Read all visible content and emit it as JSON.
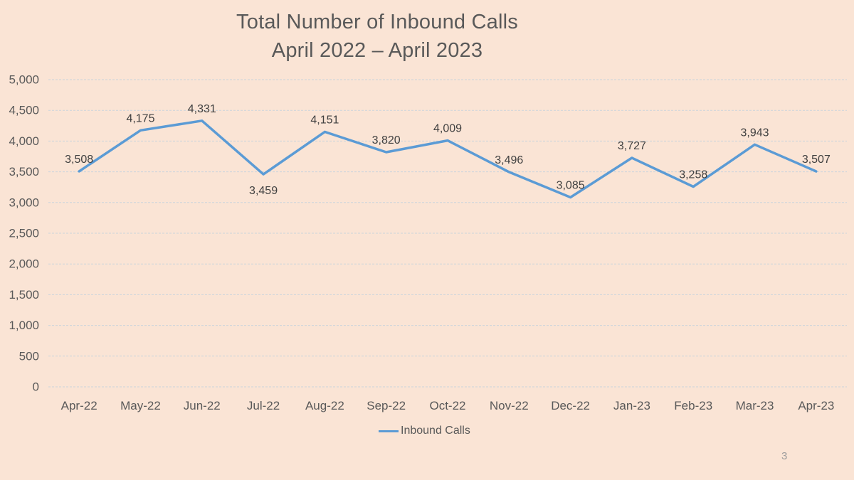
{
  "page": {
    "background_color": "#FAE4D5",
    "slide_number": "3"
  },
  "title": {
    "line1": "Total Number of Inbound Calls",
    "line2": "April 2022 – April 2023",
    "color": "#595959"
  },
  "legend": {
    "label": "Inbound Calls",
    "color": "#595959"
  },
  "chart_data": {
    "type": "line",
    "title": "Total Number of Inbound Calls April 2022 – April 2023",
    "categories": [
      "Apr-22",
      "May-22",
      "Jun-22",
      "Jul-22",
      "Aug-22",
      "Sep-22",
      "Oct-22",
      "Nov-22",
      "Dec-22",
      "Jan-23",
      "Feb-23",
      "Mar-23",
      "Apr-23"
    ],
    "series": [
      {
        "name": "Inbound Calls",
        "values": [
          3508,
          4175,
          4331,
          3459,
          4151,
          3820,
          4009,
          3496,
          3085,
          3727,
          3258,
          3943,
          3507
        ]
      }
    ],
    "value_labels": [
      "3,508",
      "4,175",
      "4,331",
      "3,459",
      "4,151",
      "3,820",
      "4,009",
      "3,496",
      "3,085",
      "3,727",
      "3,258",
      "3,943",
      "3,507"
    ],
    "label_positions": [
      "above",
      "above",
      "above",
      "below",
      "above",
      "above",
      "above",
      "above",
      "above",
      "above",
      "above",
      "above",
      "above"
    ],
    "xlabel": "",
    "ylabel": "",
    "ylim": [
      0,
      5000
    ],
    "y_ticks": [
      {
        "value": 0,
        "label": "0"
      },
      {
        "value": 500,
        "label": "500"
      },
      {
        "value": 1000,
        "label": "1,000"
      },
      {
        "value": 1500,
        "label": "1,500"
      },
      {
        "value": 2000,
        "label": "2,000"
      },
      {
        "value": 2500,
        "label": "2,500"
      },
      {
        "value": 3000,
        "label": "3,000"
      },
      {
        "value": 3500,
        "label": "3,500"
      },
      {
        "value": 4000,
        "label": "4,000"
      },
      {
        "value": 4500,
        "label": "4,500"
      },
      {
        "value": 5000,
        "label": "5,000"
      }
    ],
    "grid": true,
    "legend_position": "bottom",
    "colors": {
      "line": "#5B9BD5",
      "gridline": "#CBD4DC",
      "tick_text": "#595959",
      "data_label_text": "#404040",
      "slide_number_text": "#9C9C9C"
    }
  }
}
